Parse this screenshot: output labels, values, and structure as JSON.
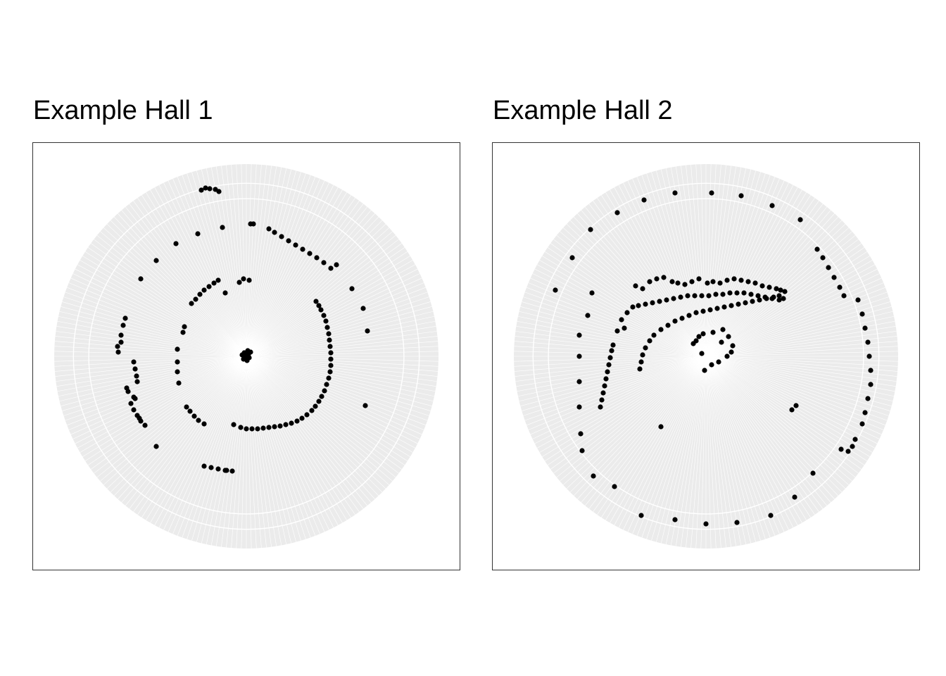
{
  "chart_data": [
    {
      "type": "scatter",
      "coord": "polar",
      "title": "Example Hall 1",
      "xlabel": "",
      "ylabel": "",
      "grid": true,
      "background": "#ebebeb",
      "grid_color": "#ffffff",
      "point_color": "#000000",
      "points": [
        [
          -2,
          0
        ],
        [
          1,
          6
        ],
        [
          -3,
          -5
        ],
        [
          2,
          -8
        ],
        [
          -1,
          3
        ],
        [
          4,
          2
        ],
        [
          0,
          -3
        ],
        [
          3,
          -3
        ],
        [
          -4,
          4
        ],
        [
          6,
          -6
        ],
        [
          -6,
          -2
        ],
        [
          99,
          -78
        ],
        [
          103,
          -72
        ],
        [
          106,
          -66
        ],
        [
          110,
          -58
        ],
        [
          113,
          -50
        ],
        [
          115,
          -41
        ],
        [
          117,
          -32
        ],
        [
          118,
          -23
        ],
        [
          119,
          -14
        ],
        [
          120,
          -5
        ],
        [
          120,
          4
        ],
        [
          120,
          13
        ],
        [
          119,
          22
        ],
        [
          117,
          31
        ],
        [
          114,
          40
        ],
        [
          111,
          49
        ],
        [
          107,
          57
        ],
        [
          103,
          64
        ],
        [
          98,
          71
        ],
        [
          93,
          77
        ],
        [
          86,
          83
        ],
        [
          79,
          88
        ],
        [
          72,
          92
        ],
        [
          64,
          95
        ],
        [
          56,
          97
        ],
        [
          48,
          99
        ],
        [
          40,
          100
        ],
        [
          32,
          101
        ],
        [
          24,
          102
        ],
        [
          16,
          103
        ],
        [
          8,
          103
        ],
        [
          0,
          103
        ],
        [
          -8,
          101
        ],
        [
          -18,
          97
        ],
        [
          -78,
          -75
        ],
        [
          -72,
          -81
        ],
        [
          -66,
          -88
        ],
        [
          -60,
          -94
        ],
        [
          -53,
          -99
        ],
        [
          -46,
          -104
        ],
        [
          -40,
          -108
        ],
        [
          -30,
          -90
        ],
        [
          -10,
          -105
        ],
        [
          -4,
          -110
        ],
        [
          4,
          -108
        ],
        [
          -90,
          -34
        ],
        [
          -88,
          -42
        ],
        [
          -98,
          -10
        ],
        [
          -98,
          8
        ],
        [
          -98,
          22
        ],
        [
          -96,
          38
        ],
        [
          -85,
          72
        ],
        [
          -80,
          78
        ],
        [
          -74,
          85
        ],
        [
          -68,
          91
        ],
        [
          -60,
          96
        ],
        [
          -172,
          -54
        ],
        [
          -175,
          -44
        ],
        [
          -178,
          -30
        ],
        [
          -183,
          -14
        ],
        [
          -182,
          -6
        ],
        [
          -178,
          -20
        ],
        [
          -160,
          8
        ],
        [
          -158,
          18
        ],
        [
          -156,
          28
        ],
        [
          -155,
          36
        ],
        [
          -168,
          50
        ],
        [
          -160,
          58
        ],
        [
          -164,
          67
        ],
        [
          -160,
          76
        ],
        [
          -155,
          84
        ],
        [
          -150,
          92
        ],
        [
          -144,
          98
        ],
        [
          -170,
          45
        ],
        [
          -152,
          88
        ],
        [
          -158,
          60
        ],
        [
          -128,
          128
        ],
        [
          -150,
          -110
        ],
        [
          -128,
          -136
        ],
        [
          -100,
          -160
        ],
        [
          -69,
          -174
        ],
        [
          -34,
          -183
        ],
        [
          6,
          -188
        ],
        [
          10,
          -188
        ],
        [
          32,
          -181
        ],
        [
          40,
          -176
        ],
        [
          50,
          -170
        ],
        [
          60,
          -164
        ],
        [
          70,
          -158
        ],
        [
          80,
          -152
        ],
        [
          90,
          -146
        ],
        [
          100,
          -140
        ],
        [
          110,
          -133
        ],
        [
          120,
          -125
        ],
        [
          128,
          -130
        ],
        [
          150,
          -96
        ],
        [
          166,
          -68
        ],
        [
          172,
          -36
        ],
        [
          169,
          70
        ],
        [
          -64,
          -236
        ],
        [
          -58,
          -239
        ],
        [
          -52,
          -238
        ],
        [
          -44,
          -237
        ],
        [
          -39,
          -234
        ],
        [
          -60,
          156
        ],
        [
          -50,
          158
        ],
        [
          -40,
          160
        ],
        [
          -30,
          162
        ],
        [
          -20,
          163
        ],
        [
          -28,
          162
        ]
      ]
    },
    {
      "type": "scatter",
      "coord": "polar",
      "title": "Example Hall 2",
      "xlabel": "",
      "ylabel": "",
      "grid": true,
      "background": "#ebebeb",
      "grid_color": "#ffffff",
      "point_color": "#000000",
      "points": [
        [
          -2,
          20
        ],
        [
          8,
          12
        ],
        [
          18,
          8
        ],
        [
          30,
          0
        ],
        [
          38,
          -15
        ],
        [
          32,
          -28
        ],
        [
          24,
          -38
        ],
        [
          10,
          -34
        ],
        [
          -4,
          -32
        ],
        [
          -10,
          -28
        ],
        [
          -18,
          -18
        ],
        [
          -6,
          -4
        ],
        [
          22,
          -20
        ],
        [
          36,
          -6
        ],
        [
          -14,
          -22
        ],
        [
          -150,
          72
        ],
        [
          -148,
          62
        ],
        [
          -146,
          52
        ],
        [
          -144,
          42
        ],
        [
          -142,
          32
        ],
        [
          -140,
          22
        ],
        [
          -138,
          12
        ],
        [
          -136,
          2
        ],
        [
          -134,
          -8
        ],
        [
          -132,
          -16
        ],
        [
          -126,
          -36
        ],
        [
          -120,
          -52
        ],
        [
          -112,
          -62
        ],
        [
          -104,
          -70
        ],
        [
          -96,
          -72
        ],
        [
          -86,
          -74
        ],
        [
          -76,
          -76
        ],
        [
          -66,
          -78
        ],
        [
          -56,
          -80
        ],
        [
          -46,
          -82
        ],
        [
          -36,
          -84
        ],
        [
          -26,
          -86
        ],
        [
          -16,
          -86
        ],
        [
          -6,
          -86
        ],
        [
          4,
          -86
        ],
        [
          14,
          -88
        ],
        [
          24,
          -88
        ],
        [
          34,
          -90
        ],
        [
          44,
          -90
        ],
        [
          54,
          -90
        ],
        [
          64,
          -88
        ],
        [
          74,
          -86
        ],
        [
          84,
          -84
        ],
        [
          94,
          -82
        ],
        [
          104,
          -80
        ],
        [
          110,
          -82
        ],
        [
          -100,
          -100
        ],
        [
          -90,
          -96
        ],
        [
          -80,
          -106
        ],
        [
          -70,
          -110
        ],
        [
          -60,
          -112
        ],
        [
          -48,
          -106
        ],
        [
          -40,
          -104
        ],
        [
          -30,
          -102
        ],
        [
          -20,
          -106
        ],
        [
          -10,
          -110
        ],
        [
          2,
          -104
        ],
        [
          10,
          -106
        ],
        [
          20,
          -104
        ],
        [
          30,
          -108
        ],
        [
          40,
          -110
        ],
        [
          50,
          -108
        ],
        [
          60,
          -106
        ],
        [
          70,
          -104
        ],
        [
          80,
          -100
        ],
        [
          90,
          -98
        ],
        [
          100,
          -96
        ],
        [
          106,
          -94
        ],
        [
          112,
          -92
        ],
        [
          -94,
          18
        ],
        [
          -92,
          8
        ],
        [
          -90,
          -2
        ],
        [
          -86,
          -12
        ],
        [
          -80,
          -22
        ],
        [
          -74,
          -30
        ],
        [
          -64,
          -38
        ],
        [
          -54,
          -44
        ],
        [
          -44,
          -50
        ],
        [
          -34,
          -54
        ],
        [
          -24,
          -58
        ],
        [
          -14,
          -62
        ],
        [
          -4,
          -64
        ],
        [
          6,
          -66
        ],
        [
          16,
          -68
        ],
        [
          26,
          -70
        ],
        [
          36,
          -72
        ],
        [
          46,
          -74
        ],
        [
          56,
          -76
        ],
        [
          66,
          -78
        ],
        [
          76,
          -80
        ],
        [
          86,
          -82
        ],
        [
          96,
          -84
        ],
        [
          104,
          -86
        ],
        [
          158,
          -152
        ],
        [
          166,
          -140
        ],
        [
          174,
          -126
        ],
        [
          182,
          -112
        ],
        [
          190,
          -98
        ],
        [
          196,
          -86
        ],
        [
          216,
          -80
        ],
        [
          222,
          -60
        ],
        [
          226,
          -40
        ],
        [
          230,
          -20
        ],
        [
          232,
          0
        ],
        [
          234,
          20
        ],
        [
          234,
          40
        ],
        [
          230,
          60
        ],
        [
          226,
          80
        ],
        [
          222,
          96
        ],
        [
          212,
          118
        ],
        [
          208,
          128
        ],
        [
          202,
          135
        ],
        [
          192,
          132
        ],
        [
          152,
          166
        ],
        [
          126,
          200
        ],
        [
          92,
          226
        ],
        [
          44,
          236
        ],
        [
          0,
          238
        ],
        [
          -44,
          232
        ],
        [
          -92,
          226
        ],
        [
          -130,
          185
        ],
        [
          -160,
          170
        ],
        [
          -176,
          134
        ],
        [
          -178,
          110
        ],
        [
          -180,
          72
        ],
        [
          -180,
          36
        ],
        [
          -180,
          0
        ],
        [
          -180,
          -30
        ],
        [
          -168,
          -58
        ],
        [
          -162,
          -90
        ],
        [
          -190,
          -140
        ],
        [
          -214,
          -94
        ],
        [
          -164,
          -180
        ],
        [
          -126,
          -204
        ],
        [
          -88,
          -222
        ],
        [
          -44,
          -232
        ],
        [
          8,
          -232
        ],
        [
          50,
          -228
        ],
        [
          94,
          -214
        ],
        [
          134,
          -194
        ],
        [
          -116,
          -40
        ],
        [
          -64,
          100
        ],
        [
          122,
          76
        ],
        [
          128,
          70
        ]
      ]
    }
  ]
}
